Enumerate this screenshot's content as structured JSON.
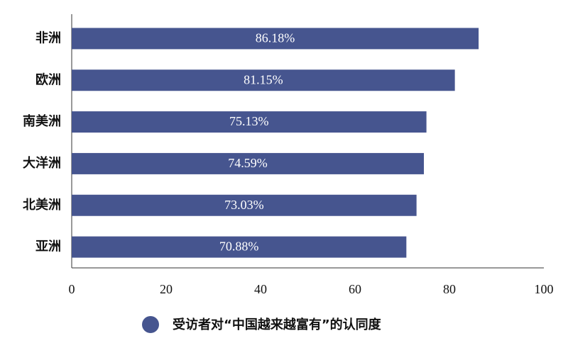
{
  "chart_data": {
    "type": "hbar",
    "categories": [
      "非洲",
      "欧洲",
      "南美洲",
      "大洋洲",
      "北美洲",
      "亚洲"
    ],
    "series": [
      {
        "name": "受访者对“中国越来越富有”的认同度",
        "color": "#46558f",
        "values": [
          86.18,
          81.15,
          75.13,
          74.59,
          73.03,
          70.88
        ],
        "value_labels": [
          "86.18%",
          "81.15%",
          "75.13%",
          "74.59%",
          "73.03%",
          "70.88%"
        ]
      }
    ],
    "xlim": [
      0,
      100
    ],
    "xticks": [
      0,
      20,
      40,
      60,
      80,
      100
    ],
    "grid": false,
    "legend": "bottom"
  }
}
